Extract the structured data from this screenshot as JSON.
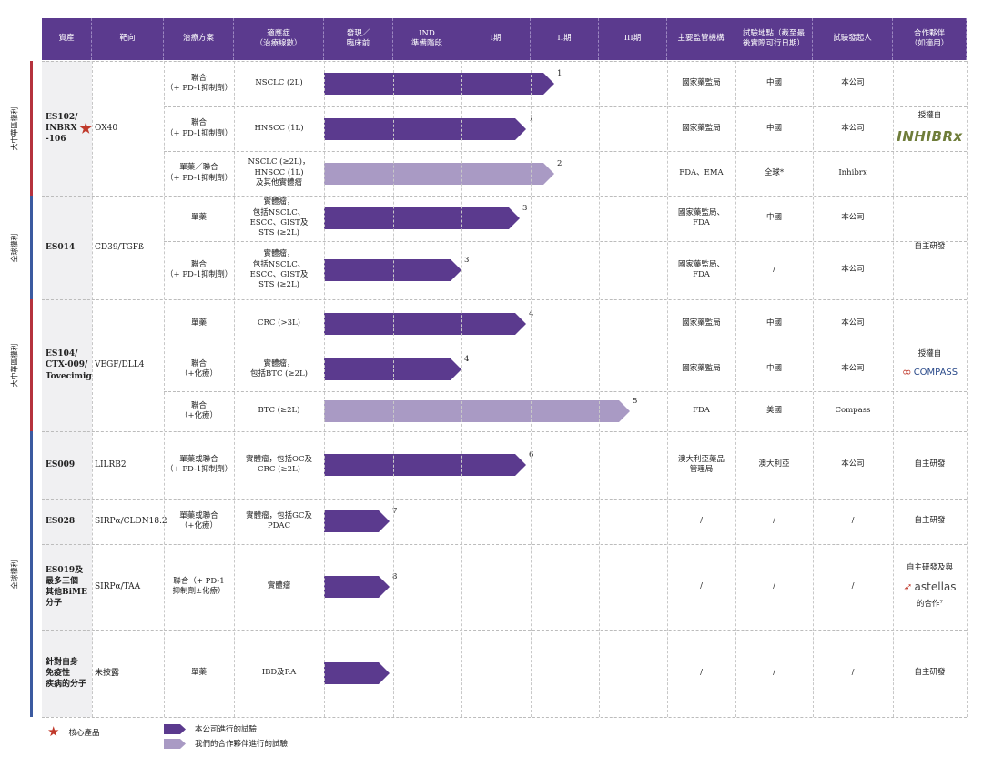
{
  "headers": [
    "資產",
    "靶向",
    "治療方案",
    "適應症\n（治療線數）",
    "發現／\n臨床前",
    "IND\n準備階段",
    "I期",
    "II期",
    "III期",
    "主要監管機構",
    "試驗地點（截至最\n後實際可行日期）",
    "試驗發起人",
    "合作夥伴\n（如適用）"
  ],
  "rights_labels": [
    "大中華區權利",
    "全球權利",
    "大中華區權利",
    "全球權利"
  ],
  "phase_colors": {
    "own": "#5b3a8e",
    "partner": "#a99ac4"
  },
  "rows": [
    {
      "regimen": "聯合\n（+ PD-1抑制劑）",
      "indication": "NSCLC (2L)",
      "note": "1",
      "sponsor_type": "own",
      "agency": "國家藥監局",
      "site": "中國",
      "sponsor": "本公司"
    },
    {
      "regimen": "聯合\n（+ PD-1抑制劑）",
      "indication": "HNSCC (1L)",
      "note": "1",
      "sponsor_type": "own",
      "agency": "國家藥監局",
      "site": "中國",
      "sponsor": "本公司"
    },
    {
      "regimen": "單藥／聯合\n（+ PD-1抑制劑）",
      "indication": "NSCLC (≥2L)，\nHNSCC (1L)\n及其他實體瘤",
      "note": "2",
      "sponsor_type": "partner",
      "agency": "FDA、EMA",
      "site": "全球*",
      "sponsor": "Inhibrx"
    },
    {
      "regimen": "單藥",
      "indication": "實體瘤，\n包括NSCLC、\nESCC、GIST及\nSTS (≥2L)",
      "note": "3",
      "sponsor_type": "own",
      "agency": "國家藥監局、\nFDA",
      "site": "中國",
      "sponsor": "本公司"
    },
    {
      "regimen": "聯合\n（+ PD-1抑制劑）",
      "indication": "實體瘤，\n包括NSCLC、\nESCC、GIST及\nSTS (≥2L)",
      "note": "3",
      "sponsor_type": "own",
      "agency": "國家藥監局、\nFDA",
      "site": "/",
      "sponsor": "本公司"
    },
    {
      "regimen": "單藥",
      "indication": "CRC (>3L)",
      "note": "4",
      "sponsor_type": "own",
      "agency": "國家藥監局",
      "site": "中國",
      "sponsor": "本公司"
    },
    {
      "regimen": "聯合\n（+化療）",
      "indication": "實體瘤，\n包括BTC (≥2L)",
      "note": "4",
      "sponsor_type": "own",
      "agency": "國家藥監局",
      "site": "中國",
      "sponsor": "本公司"
    },
    {
      "regimen": "聯合\n（+化療）",
      "indication": "BTC (≥2L)",
      "note": "5",
      "sponsor_type": "partner",
      "agency": "FDA",
      "site": "美國",
      "sponsor": "Compass"
    },
    {
      "regimen": "單藥或聯合\n（+ PD-1抑制劑）",
      "indication": "實體瘤，包括OC及\nCRC (≥2L)",
      "note": "6",
      "sponsor_type": "own",
      "agency": "澳大利亞藥品\n管理局",
      "site": "澳大利亞",
      "sponsor": "本公司"
    },
    {
      "regimen": "單藥或聯合\n（+化療）",
      "indication": "實體瘤，包括GC及\nPDAC",
      "note": "7",
      "sponsor_type": "own",
      "agency": "/",
      "site": "/",
      "sponsor": "/"
    },
    {
      "regimen": "聯合（+ PD-1\n抑制劑±化療）",
      "indication": "實體瘤",
      "note": "8",
      "sponsor_type": "own",
      "agency": "/",
      "site": "/",
      "sponsor": "/"
    },
    {
      "regimen": "單藥",
      "indication": "IBD及RA",
      "note": "",
      "sponsor_type": "own",
      "agency": "/",
      "site": "/",
      "sponsor": "/"
    }
  ],
  "assets": [
    {
      "name": "ES102/\nINBRX\n-106",
      "target": "OX40",
      "partner": "授權自",
      "partner_logo": "INHIBRx",
      "partner_logo_icon": "inhibrx-logo"
    },
    {
      "name": "ES014",
      "target": "CD39/TGFß",
      "partner": "自主研發"
    },
    {
      "name": "ES104/\nCTX-009/\nTovecimig",
      "target": "VEGF/DLL4",
      "partner": "授權自",
      "partner_logo": "COMPASS",
      "partner_logo_icon": "compass-logo"
    },
    {
      "name": "ES009",
      "target": "LILRB2",
      "partner": "自主研發"
    },
    {
      "name": "ES028",
      "target": "SIRPα/CLDN18.2",
      "partner": "自主研發"
    },
    {
      "name": "ES019及\n最多三個\n其他BiME\n分子",
      "target": "SIRPα/TAA",
      "partner": "自主研發及與",
      "partner_logo": "astellas",
      "partner_logo_icon": "astellas-logo",
      "partner_suffix": "的合作⁷"
    },
    {
      "name": "針對自身\n免疫性\n疾病的分子",
      "target": "未披露",
      "partner": "自主研發"
    }
  ],
  "legend": {
    "core": "核心產品",
    "own": "本公司進行的試驗",
    "partner": "我們的合作夥伴進行的試驗",
    "core_icon": "star-icon"
  },
  "chart_data": {
    "type": "table",
    "stages": [
      "發現／臨床前",
      "IND準備階段",
      "I期",
      "II期",
      "III期"
    ],
    "trials": [
      {
        "asset": "ES102/INBRX-106",
        "indication": "NSCLC (2L)",
        "stage_progress": 3.35,
        "note": "1"
      },
      {
        "asset": "ES102/INBRX-106",
        "indication": "HNSCC (1L)",
        "stage_progress": 2.95,
        "note": "1"
      },
      {
        "asset": "ES102/INBRX-106",
        "indication": "NSCLC (≥2L)，HNSCC (1L)及其他實體瘤",
        "stage_progress": 3.35,
        "note": "2"
      },
      {
        "asset": "ES014",
        "indication": "實體瘤 (單藥)",
        "stage_progress": 2.85,
        "note": "3"
      },
      {
        "asset": "ES014",
        "indication": "實體瘤 (聯合)",
        "stage_progress": 2.0,
        "note": "3"
      },
      {
        "asset": "ES104/CTX-009/Tovecimig",
        "indication": "CRC (>3L)",
        "stage_progress": 2.95,
        "note": "4"
      },
      {
        "asset": "ES104/CTX-009/Tovecimig",
        "indication": "實體瘤，包括BTC (≥2L)",
        "stage_progress": 2.0,
        "note": "4"
      },
      {
        "asset": "ES104/CTX-009/Tovecimig",
        "indication": "BTC (≥2L)",
        "stage_progress": 4.45,
        "note": "5"
      },
      {
        "asset": "ES009",
        "indication": "實體瘤，包括OC及CRC (≥2L)",
        "stage_progress": 2.95,
        "note": "6"
      },
      {
        "asset": "ES028",
        "indication": "實體瘤，包括GC及PDAC",
        "stage_progress": 0.95,
        "note": "7"
      },
      {
        "asset": "ES019",
        "indication": "實體瘤",
        "stage_progress": 0.95,
        "note": "8"
      },
      {
        "asset": "針對自身免疫性疾病的分子",
        "indication": "IBD及RA",
        "stage_progress": 0.95,
        "note": ""
      }
    ]
  }
}
